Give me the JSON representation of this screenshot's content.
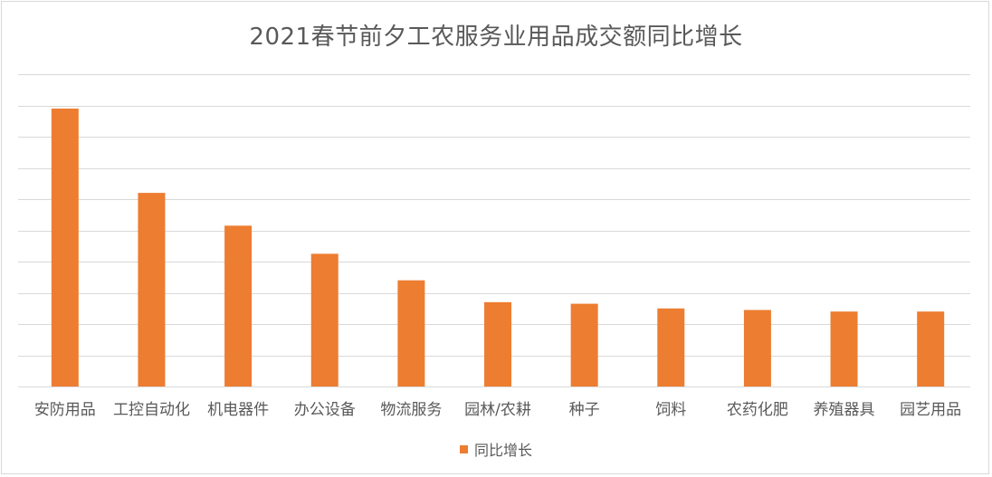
{
  "chart_data": {
    "type": "bar",
    "title": "2021春节前夕工农服务业用品成交额同比增长",
    "xlabel": "",
    "ylabel": "",
    "categories": [
      "安防用品",
      "工控自动化",
      "机电器件",
      "办公设备",
      "物流服务",
      "园林/农耕",
      "种子",
      "饲料",
      "农药化肥",
      "养殖器具",
      "园艺用品"
    ],
    "series": [
      {
        "name": "同比增长",
        "values": [
          8.9,
          6.2,
          5.15,
          4.25,
          3.4,
          2.7,
          2.65,
          2.5,
          2.45,
          2.4,
          2.4
        ]
      }
    ],
    "ylim": [
      0,
      10
    ],
    "y_tick_step": 1,
    "y_tick_labels_visible": false,
    "grid": true,
    "legend_position": "bottom",
    "colors": {
      "bar": "#ed7d31",
      "grid": "#d9d9d9",
      "text": "#595959"
    }
  }
}
